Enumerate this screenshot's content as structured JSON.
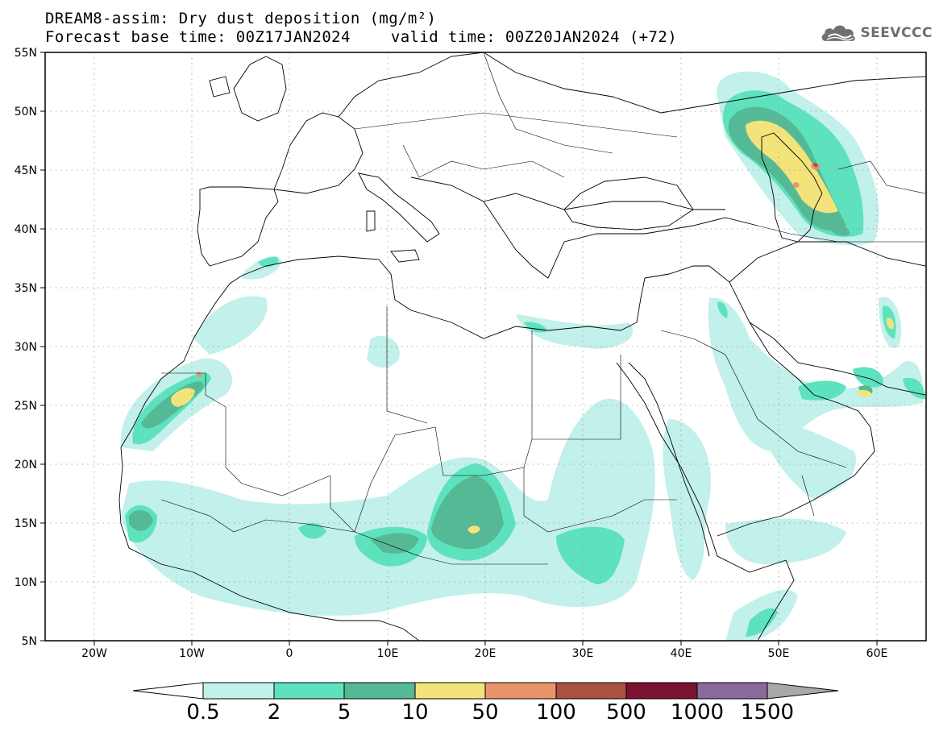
{
  "title": {
    "line1": "DREAM8-assim: Dry dust deposition (mg/m²)",
    "base_time": "Forecast base time: 00Z17JAN2024",
    "valid_time": "valid time: 00Z20JAN2024 (+72)"
  },
  "logo": {
    "text": "SEEVCCC",
    "icon": "cloud-logo-icon"
  },
  "map": {
    "lon_range": [
      -25,
      65
    ],
    "lat_range": [
      5,
      55
    ],
    "grid": "dotted",
    "lon_ticks": [
      "20W",
      "10W",
      "0",
      "10E",
      "20E",
      "30E",
      "40E",
      "50E",
      "60E"
    ],
    "lat_ticks": [
      "5N",
      "10N",
      "15N",
      "20N",
      "25N",
      "30N",
      "35N",
      "40N",
      "45N",
      "50N",
      "55N"
    ]
  },
  "colorbar": {
    "levels": [
      "0.5",
      "2",
      "5",
      "10",
      "50",
      "100",
      "500",
      "1000",
      "1500"
    ],
    "colors": [
      "#c2f0ea",
      "#5de2bd",
      "#55b996",
      "#f2e47a",
      "#ea946a",
      "#ab5142",
      "#7c1231",
      "#8a6a9c"
    ],
    "under_color": "#ffffff",
    "over_color": "#a8a8a8"
  }
}
